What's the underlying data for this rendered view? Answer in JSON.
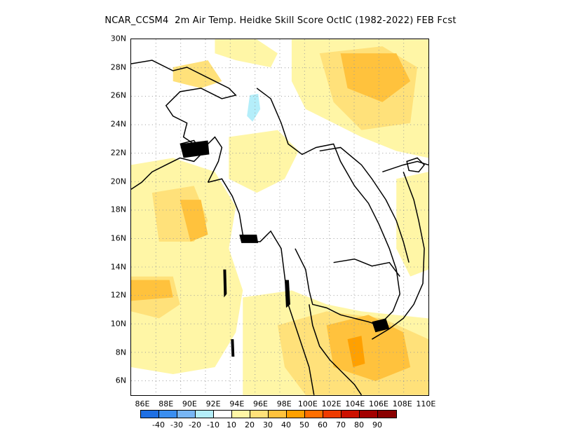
{
  "title": "NCAR_CCSM4  2m Air Temp. Heidke Skill Score OctIC (1982-2022) FEB Fcst",
  "y_ticks": [
    "30N",
    "28N",
    "26N",
    "24N",
    "22N",
    "20N",
    "18N",
    "16N",
    "14N",
    "12N",
    "10N",
    "8N",
    "6N"
  ],
  "x_ticks": [
    "86E",
    "88E",
    "90E",
    "92E",
    "94E",
    "96E",
    "98E",
    "100E",
    "102E",
    "104E",
    "106E",
    "108E",
    "110E"
  ],
  "colorbar": {
    "labels": [
      "-40",
      "-30",
      "-20",
      "-10",
      "10",
      "20",
      "30",
      "40",
      "50",
      "60",
      "70",
      "80",
      "90"
    ],
    "colors": [
      "#1e6fe3",
      "#3a8ef0",
      "#78b6f5",
      "#b4eefa",
      "#ffffff",
      "#fff6a6",
      "#ffe17a",
      "#ffc23d",
      "#ffa000",
      "#ff6f00",
      "#ee3b00",
      "#cc1000",
      "#a30000",
      "#8a0000"
    ]
  },
  "map_colors": {
    "light_yellow": "#fff6a6",
    "yellow": "#ffe17a",
    "orange": "#ffc23d",
    "deep_orange": "#ffa000",
    "cyan": "#b4eefa",
    "coast": "#000000",
    "grid": "#9a9a9a"
  }
}
